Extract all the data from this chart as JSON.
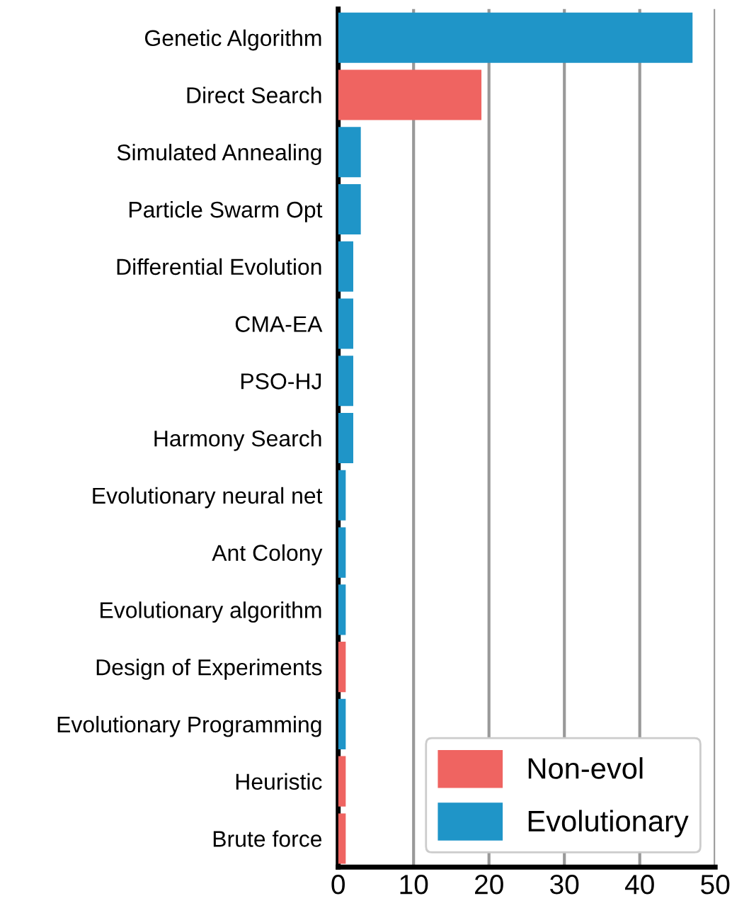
{
  "chart_data": {
    "type": "bar",
    "orientation": "horizontal",
    "categories": [
      "Genetic Algorithm",
      "Direct Search",
      "Simulated Annealing",
      "Particle Swarm Opt",
      "Differential Evolution",
      "CMA-EA",
      "PSO-HJ",
      "Harmony Search",
      "Evolutionary neural net",
      "Ant Colony",
      "Evolutionary algorithm",
      "Design of Experiments",
      "Evolutionary Programming",
      "Heuristic",
      "Brute force"
    ],
    "series": [
      {
        "name": "Non-evol",
        "color": "#ef6461",
        "values": [
          null,
          19,
          null,
          null,
          null,
          null,
          null,
          null,
          null,
          null,
          null,
          1,
          null,
          1,
          1
        ]
      },
      {
        "name": "Evolutionary",
        "color": "#1f95c8",
        "values": [
          47,
          null,
          3,
          3,
          2,
          2,
          2,
          2,
          1,
          1,
          1,
          null,
          1,
          null,
          null
        ]
      }
    ],
    "xlim": [
      0,
      50
    ],
    "xticks": [
      0,
      10,
      20,
      30,
      40,
      50
    ],
    "grid": "x",
    "legend": "bottom right"
  }
}
